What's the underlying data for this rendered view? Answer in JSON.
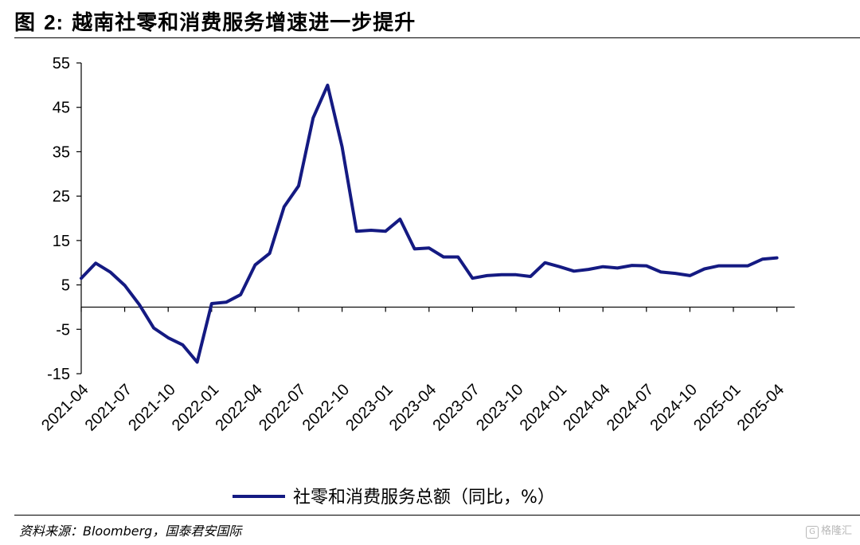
{
  "header": {
    "title_prefix": "图 ",
    "title_number": "2:",
    "title_text": " 越南社零和消费服务增速进一步提升"
  },
  "footer": {
    "source": "资料来源：Bloomberg，国泰君安国际",
    "watermark": "格隆汇"
  },
  "colors": {
    "series": "#141a82",
    "axis": "#000000"
  },
  "chart_data": {
    "type": "line",
    "title": "越南社零和消费服务增速进一步提升",
    "xlabel": "",
    "ylabel": "",
    "ylim": [
      -15,
      55
    ],
    "yticks": [
      55,
      45,
      35,
      25,
      15,
      5,
      -5,
      -15
    ],
    "ytick_labels": [
      "55",
      "45",
      "35",
      "25",
      "15",
      "5",
      "-5",
      "-15"
    ],
    "xtick_labels": [
      "2021-04",
      "2021-07",
      "2021-10",
      "2022-01",
      "2022-04",
      "2022-07",
      "2022-10",
      "2023-01",
      "2023-04",
      "2023-07",
      "2023-10",
      "2024-01",
      "2024-04",
      "2024-07",
      "2024-10",
      "2025-01",
      "2025-04"
    ],
    "legend_position": "bottom-center",
    "series": [
      {
        "name": "社零和消费服务总额（同比，%）",
        "values": [
          6.5,
          9.9,
          7.9,
          4.9,
          0.6,
          -4.7,
          -6.9,
          -8.5,
          -12.4,
          0.8,
          1.1,
          2.8,
          9.5,
          12.1,
          22.6,
          27.3,
          42.6,
          50.0,
          36.1,
          17.1,
          17.3,
          17.1,
          19.8,
          13.1,
          13.3,
          11.3,
          11.3,
          6.5,
          7.1,
          7.3,
          7.3,
          6.9,
          10.0,
          9.1,
          8.1,
          8.5,
          9.1,
          8.8,
          9.4,
          9.3,
          7.9,
          7.6,
          7.1,
          8.6,
          9.3,
          9.3,
          9.3,
          10.8,
          11.1
        ]
      }
    ]
  }
}
